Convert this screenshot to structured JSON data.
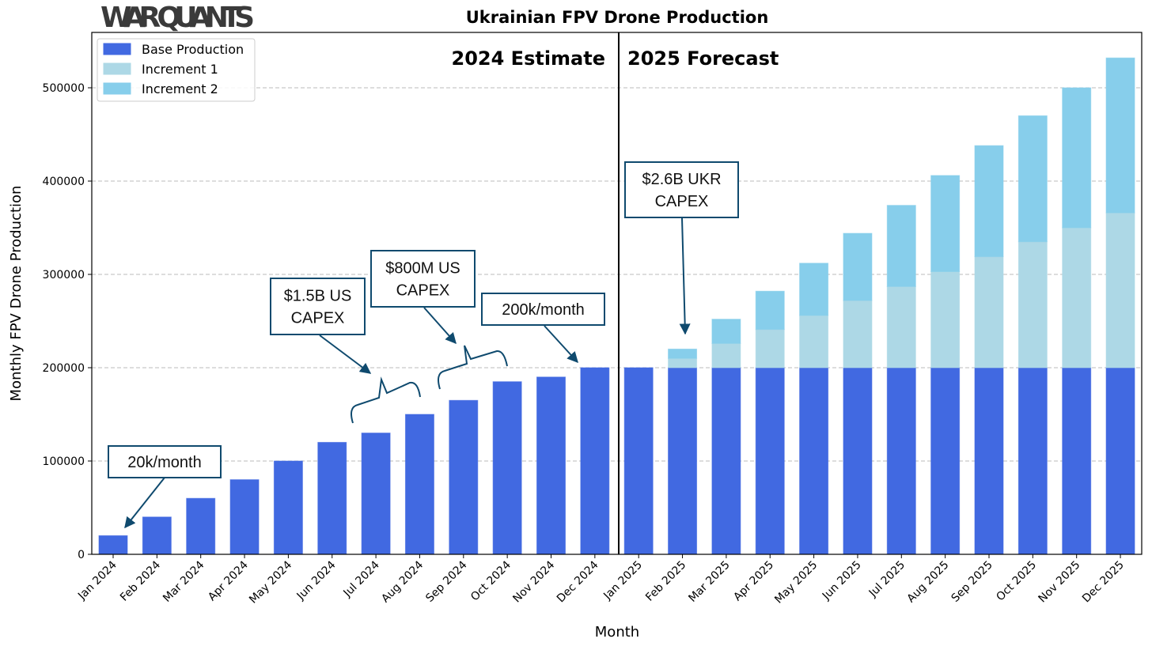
{
  "logo": "WAR QUANTS",
  "chart_data": {
    "type": "bar",
    "stacked": true,
    "title": "Ukrainian FPV Drone Production",
    "xlabel": "Month",
    "ylabel": "Monthly FPV Drone Production",
    "ylim": [
      0,
      560000
    ],
    "yticks": [
      0,
      100000,
      200000,
      300000,
      400000,
      500000
    ],
    "grid": "y-dashed",
    "legend_position": "top-left",
    "categories": [
      "Jan 2024",
      "Feb 2024",
      "Mar 2024",
      "Apr 2024",
      "May 2024",
      "Jun 2024",
      "Jul 2024",
      "Aug 2024",
      "Sep 2024",
      "Oct 2024",
      "Nov 2024",
      "Dec 2024",
      "Jan 2025",
      "Feb 2025",
      "Mar 2025",
      "Apr 2025",
      "May 2025",
      "Jun 2025",
      "Jul 2025",
      "Aug 2025",
      "Sep 2025",
      "Oct 2025",
      "Nov 2025",
      "Dec 2025"
    ],
    "series": [
      {
        "name": "Base Production",
        "color": "#4169e1",
        "values": [
          20000,
          40000,
          60000,
          80000,
          100000,
          120000,
          130000,
          150000,
          165000,
          185000,
          190000,
          200000,
          200000,
          200000,
          200000,
          200000,
          200000,
          200000,
          200000,
          200000,
          200000,
          200000,
          200000,
          200000
        ]
      },
      {
        "name": "Increment 1",
        "color": "#add8e6",
        "values": [
          0,
          0,
          0,
          0,
          0,
          0,
          0,
          0,
          0,
          0,
          0,
          0,
          0,
          10000,
          26000,
          41000,
          56000,
          72000,
          87000,
          103000,
          119000,
          135000,
          150000,
          166000
        ]
      },
      {
        "name": "Increment 2",
        "color": "#87ceeb",
        "values": [
          0,
          0,
          0,
          0,
          0,
          0,
          0,
          0,
          0,
          0,
          0,
          0,
          0,
          10000,
          26000,
          41000,
          56000,
          72000,
          87000,
          103000,
          119000,
          135000,
          150000,
          166000
        ]
      }
    ],
    "regions": [
      {
        "label": "2024 Estimate"
      },
      {
        "label": "2025 Forecast"
      }
    ],
    "annotations": [
      {
        "lines": [
          "20k/month"
        ],
        "target": "Jan 2024"
      },
      {
        "lines": [
          "$1.5B US",
          "CAPEX"
        ],
        "target": "Jul 2024"
      },
      {
        "lines": [
          "$800M US",
          "CAPEX"
        ],
        "target": "Sep 2024"
      },
      {
        "lines": [
          "200k/month"
        ],
        "target": "Dec 2024"
      },
      {
        "lines": [
          "$2.6B UKR",
          "CAPEX"
        ],
        "target": "Feb 2025"
      }
    ]
  }
}
